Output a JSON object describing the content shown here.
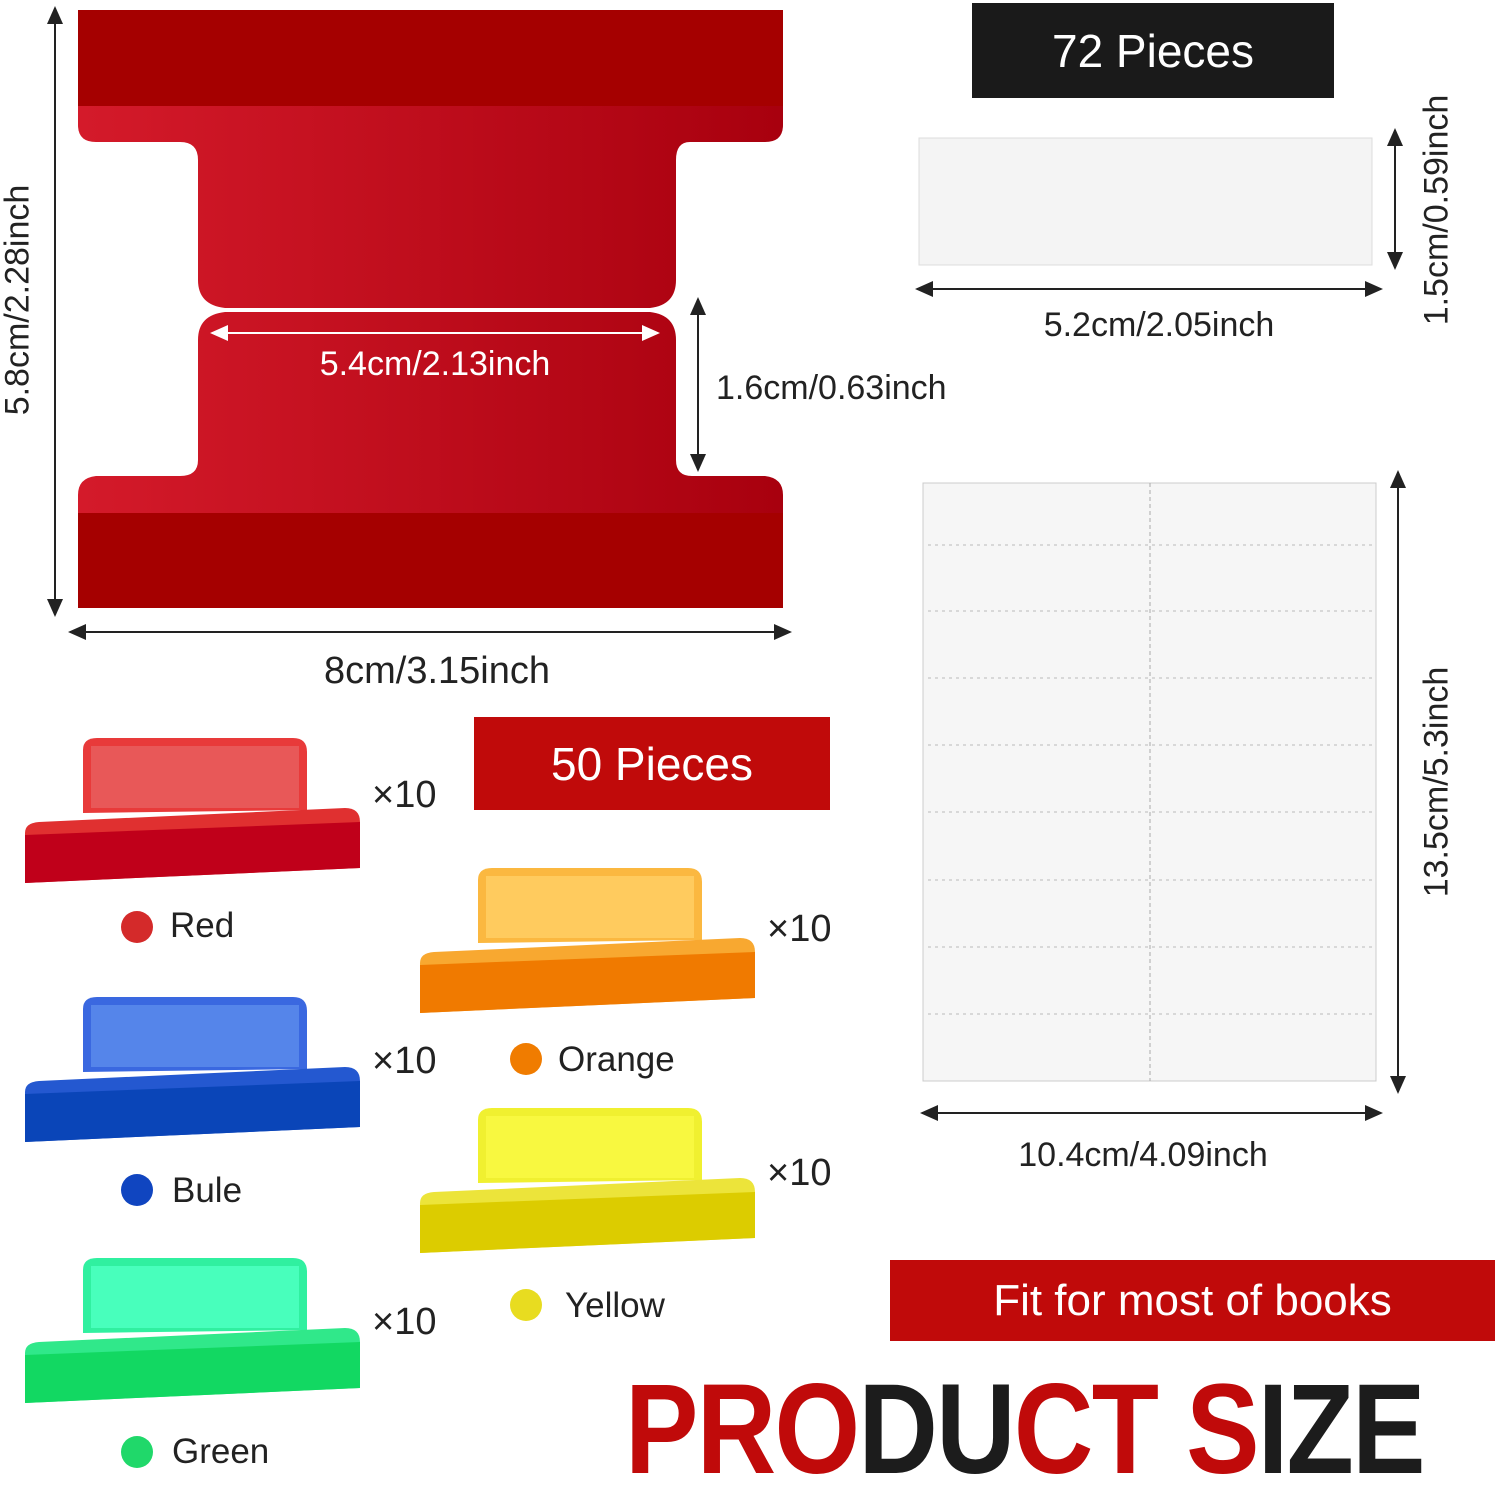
{
  "big_tab": {
    "color": "#b5000e",
    "height_label": "5.8cm/2.28inch",
    "width_label": "8cm/3.15inch",
    "inner_width_label": "5.4cm/2.13inch",
    "inner_height_label": "1.6cm/0.63inch"
  },
  "label_strip": {
    "pieces_label": "72 Pieces",
    "height_label": "1.5cm/0.59inch",
    "width_label": "5.2cm/2.05inch"
  },
  "label_sheet": {
    "height_label": "13.5cm/5.3inch",
    "width_label": "10.4cm/4.09inch"
  },
  "tabs_set": {
    "pieces_label": "50 Pieces",
    "colors": [
      {
        "name": "Red",
        "qty": "×10",
        "hex": "#d42a2a"
      },
      {
        "name": "Bule",
        "qty": "×10",
        "hex": "#1045c0"
      },
      {
        "name": "Green",
        "qty": "×10",
        "hex": "#20d86a"
      },
      {
        "name": "Orange",
        "qty": "×10",
        "hex": "#f07c00"
      },
      {
        "name": "Yellow",
        "qty": "×10",
        "hex": "#e8dc20"
      }
    ]
  },
  "banner": {
    "text": "Fit for most of books"
  },
  "logo": {
    "text": "PRODUCT SIZE",
    "accent": "#c00a0a",
    "dark": "#1c1c1c"
  }
}
